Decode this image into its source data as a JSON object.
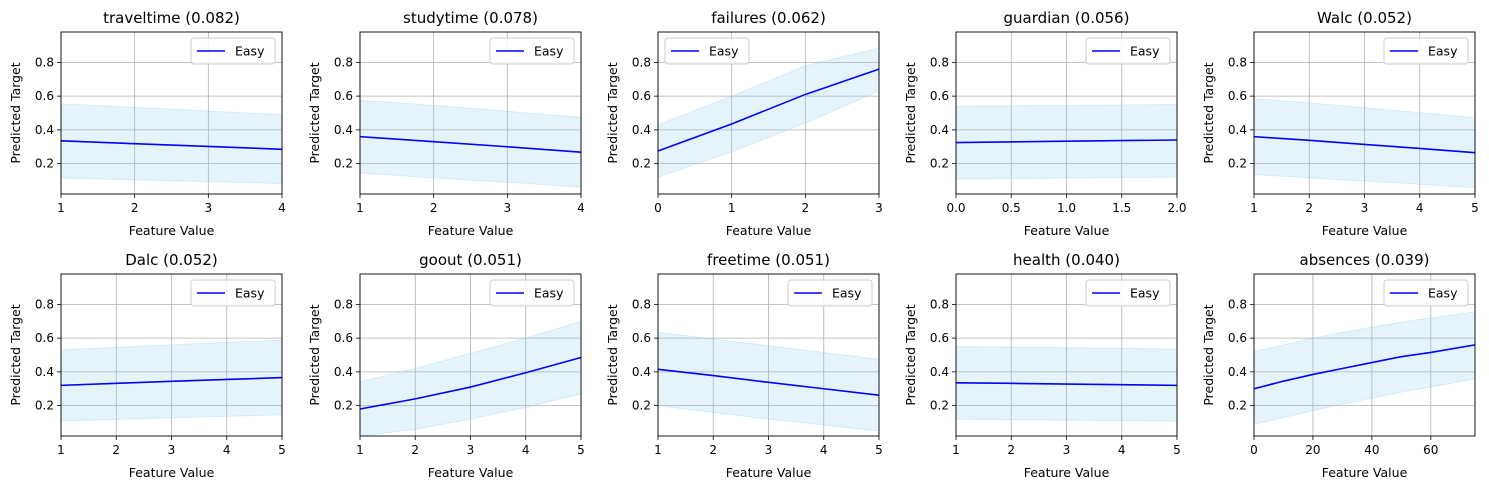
{
  "chart_data": [
    {
      "type": "line",
      "title": "traveltime (0.082)",
      "xlabel": "Feature Value",
      "ylabel": "Predicted Target",
      "xlim": [
        1,
        4
      ],
      "ylim": [
        0.02,
        0.98
      ],
      "xticks": [
        "1",
        "2",
        "3",
        "4"
      ],
      "yticks": [
        "0.2",
        "0.4",
        "0.6",
        "0.8"
      ],
      "grid": true,
      "legend": "upper right",
      "series": [
        {
          "name": "Easy",
          "color": "#0000ff",
          "x": [
            1,
            2,
            3,
            4
          ],
          "y": [
            0.335,
            0.318,
            0.302,
            0.285
          ],
          "lower": [
            0.115,
            0.104,
            0.093,
            0.082
          ],
          "upper": [
            0.555,
            0.533,
            0.511,
            0.49
          ]
        }
      ]
    },
    {
      "type": "line",
      "title": "studytime (0.078)",
      "xlabel": "Feature Value",
      "ylabel": "Predicted Target",
      "xlim": [
        1,
        4
      ],
      "ylim": [
        0.02,
        0.98
      ],
      "xticks": [
        "1",
        "2",
        "3",
        "4"
      ],
      "yticks": [
        "0.2",
        "0.4",
        "0.6",
        "0.8"
      ],
      "grid": true,
      "legend": "upper right",
      "series": [
        {
          "name": "Easy",
          "color": "#0000ff",
          "x": [
            1,
            2,
            3,
            4
          ],
          "y": [
            0.36,
            0.33,
            0.3,
            0.268
          ],
          "lower": [
            0.145,
            0.115,
            0.09,
            0.062
          ],
          "upper": [
            0.575,
            0.545,
            0.51,
            0.474
          ]
        }
      ]
    },
    {
      "type": "line",
      "title": "failures (0.062)",
      "xlabel": "Feature Value",
      "ylabel": "Predicted Target",
      "xlim": [
        0,
        3
      ],
      "ylim": [
        0.02,
        0.98
      ],
      "xticks": [
        "0",
        "1",
        "2",
        "3"
      ],
      "yticks": [
        "0.2",
        "0.4",
        "0.6",
        "0.8"
      ],
      "grid": true,
      "legend": "upper left",
      "series": [
        {
          "name": "Easy",
          "color": "#0000ff",
          "x": [
            0,
            1,
            2,
            3
          ],
          "y": [
            0.275,
            0.435,
            0.61,
            0.76
          ],
          "lower": [
            0.12,
            0.27,
            0.44,
            0.63
          ],
          "upper": [
            0.43,
            0.6,
            0.78,
            0.885
          ]
        }
      ]
    },
    {
      "type": "line",
      "title": "guardian (0.056)",
      "xlabel": "Feature Value",
      "ylabel": "Predicted Target",
      "xlim": [
        0,
        2
      ],
      "ylim": [
        0.02,
        0.98
      ],
      "xticks": [
        "0.0",
        "0.5",
        "1.0",
        "1.5",
        "2.0"
      ],
      "yticks": [
        "0.2",
        "0.4",
        "0.6",
        "0.8"
      ],
      "grid": true,
      "legend": "upper right",
      "series": [
        {
          "name": "Easy",
          "color": "#0000ff",
          "x": [
            0,
            1,
            2
          ],
          "y": [
            0.325,
            0.333,
            0.34
          ],
          "lower": [
            0.11,
            0.115,
            0.12
          ],
          "upper": [
            0.54,
            0.545,
            0.55
          ]
        }
      ]
    },
    {
      "type": "line",
      "title": "Walc (0.052)",
      "xlabel": "Feature Value",
      "ylabel": "Predicted Target",
      "xlim": [
        1,
        5
      ],
      "ylim": [
        0.02,
        0.98
      ],
      "xticks": [
        "1",
        "2",
        "3",
        "4",
        "5"
      ],
      "yticks": [
        "0.2",
        "0.4",
        "0.6",
        "0.8"
      ],
      "grid": true,
      "legend": "upper right",
      "series": [
        {
          "name": "Easy",
          "color": "#0000ff",
          "x": [
            1,
            2,
            3,
            4,
            5
          ],
          "y": [
            0.36,
            0.338,
            0.314,
            0.29,
            0.265
          ],
          "lower": [
            0.135,
            0.116,
            0.097,
            0.078,
            0.058
          ],
          "upper": [
            0.585,
            0.56,
            0.531,
            0.502,
            0.472
          ]
        }
      ]
    },
    {
      "type": "line",
      "title": "Dalc (0.052)",
      "xlabel": "Feature Value",
      "ylabel": "Predicted Target",
      "xlim": [
        1,
        5
      ],
      "ylim": [
        0.02,
        0.98
      ],
      "xticks": [
        "1",
        "2",
        "3",
        "4",
        "5"
      ],
      "yticks": [
        "0.2",
        "0.4",
        "0.6",
        "0.8"
      ],
      "grid": true,
      "legend": "upper right",
      "series": [
        {
          "name": "Easy",
          "color": "#0000ff",
          "x": [
            1,
            2,
            3,
            4,
            5
          ],
          "y": [
            0.32,
            0.332,
            0.344,
            0.355,
            0.366
          ],
          "lower": [
            0.11,
            0.119,
            0.128,
            0.137,
            0.145
          ],
          "upper": [
            0.53,
            0.545,
            0.56,
            0.574,
            0.588
          ]
        }
      ]
    },
    {
      "type": "line",
      "title": "goout (0.051)",
      "xlabel": "Feature Value",
      "ylabel": "Predicted Target",
      "xlim": [
        1,
        5
      ],
      "ylim": [
        0.02,
        0.98
      ],
      "xticks": [
        "1",
        "2",
        "3",
        "4",
        "5"
      ],
      "yticks": [
        "0.2",
        "0.4",
        "0.6",
        "0.8"
      ],
      "grid": true,
      "legend": "upper right",
      "series": [
        {
          "name": "Easy",
          "color": "#0000ff",
          "x": [
            1,
            2,
            3,
            4,
            5
          ],
          "y": [
            0.18,
            0.24,
            0.31,
            0.395,
            0.485
          ],
          "lower": [
            0.02,
            0.06,
            0.12,
            0.19,
            0.27
          ],
          "upper": [
            0.34,
            0.42,
            0.51,
            0.6,
            0.7
          ]
        }
      ]
    },
    {
      "type": "line",
      "title": "freetime (0.051)",
      "xlabel": "Feature Value",
      "ylabel": "Predicted Target",
      "xlim": [
        1,
        5
      ],
      "ylim": [
        0.02,
        0.98
      ],
      "xticks": [
        "1",
        "2",
        "3",
        "4",
        "5"
      ],
      "yticks": [
        "0.2",
        "0.4",
        "0.6",
        "0.8"
      ],
      "grid": true,
      "legend": "upper right",
      "series": [
        {
          "name": "Easy",
          "color": "#0000ff",
          "x": [
            1,
            2,
            3,
            4,
            5
          ],
          "y": [
            0.415,
            0.378,
            0.338,
            0.3,
            0.262
          ],
          "lower": [
            0.2,
            0.16,
            0.12,
            0.085,
            0.05
          ],
          "upper": [
            0.635,
            0.595,
            0.555,
            0.515,
            0.475
          ]
        }
      ]
    },
    {
      "type": "line",
      "title": "health (0.040)",
      "xlabel": "Feature Value",
      "ylabel": "Predicted Target",
      "xlim": [
        1,
        5
      ],
      "ylim": [
        0.02,
        0.98
      ],
      "xticks": [
        "1",
        "2",
        "3",
        "4",
        "5"
      ],
      "yticks": [
        "0.2",
        "0.4",
        "0.6",
        "0.8"
      ],
      "grid": true,
      "legend": "upper right",
      "series": [
        {
          "name": "Easy",
          "color": "#0000ff",
          "x": [
            1,
            2,
            3,
            4,
            5
          ],
          "y": [
            0.335,
            0.332,
            0.328,
            0.324,
            0.32
          ],
          "lower": [
            0.12,
            0.117,
            0.114,
            0.111,
            0.108
          ],
          "upper": [
            0.55,
            0.547,
            0.543,
            0.539,
            0.535
          ]
        }
      ]
    },
    {
      "type": "line",
      "title": "absences (0.039)",
      "xlabel": "Feature Value",
      "ylabel": "Predicted Target",
      "xlim": [
        0,
        75
      ],
      "ylim": [
        0.02,
        0.98
      ],
      "xticks": [
        "0",
        "20",
        "40",
        "60"
      ],
      "yticks": [
        "0.2",
        "0.4",
        "0.6",
        "0.8"
      ],
      "grid": true,
      "legend": "upper right",
      "series": [
        {
          "name": "Easy",
          "color": "#0000ff",
          "x": [
            0,
            10,
            20,
            30,
            40,
            50,
            60,
            75
          ],
          "y": [
            0.3,
            0.345,
            0.385,
            0.42,
            0.455,
            0.49,
            0.515,
            0.56
          ],
          "lower": [
            0.09,
            0.13,
            0.17,
            0.21,
            0.245,
            0.28,
            0.31,
            0.36
          ],
          "upper": [
            0.52,
            0.56,
            0.6,
            0.635,
            0.665,
            0.695,
            0.72,
            0.755
          ]
        }
      ]
    }
  ]
}
